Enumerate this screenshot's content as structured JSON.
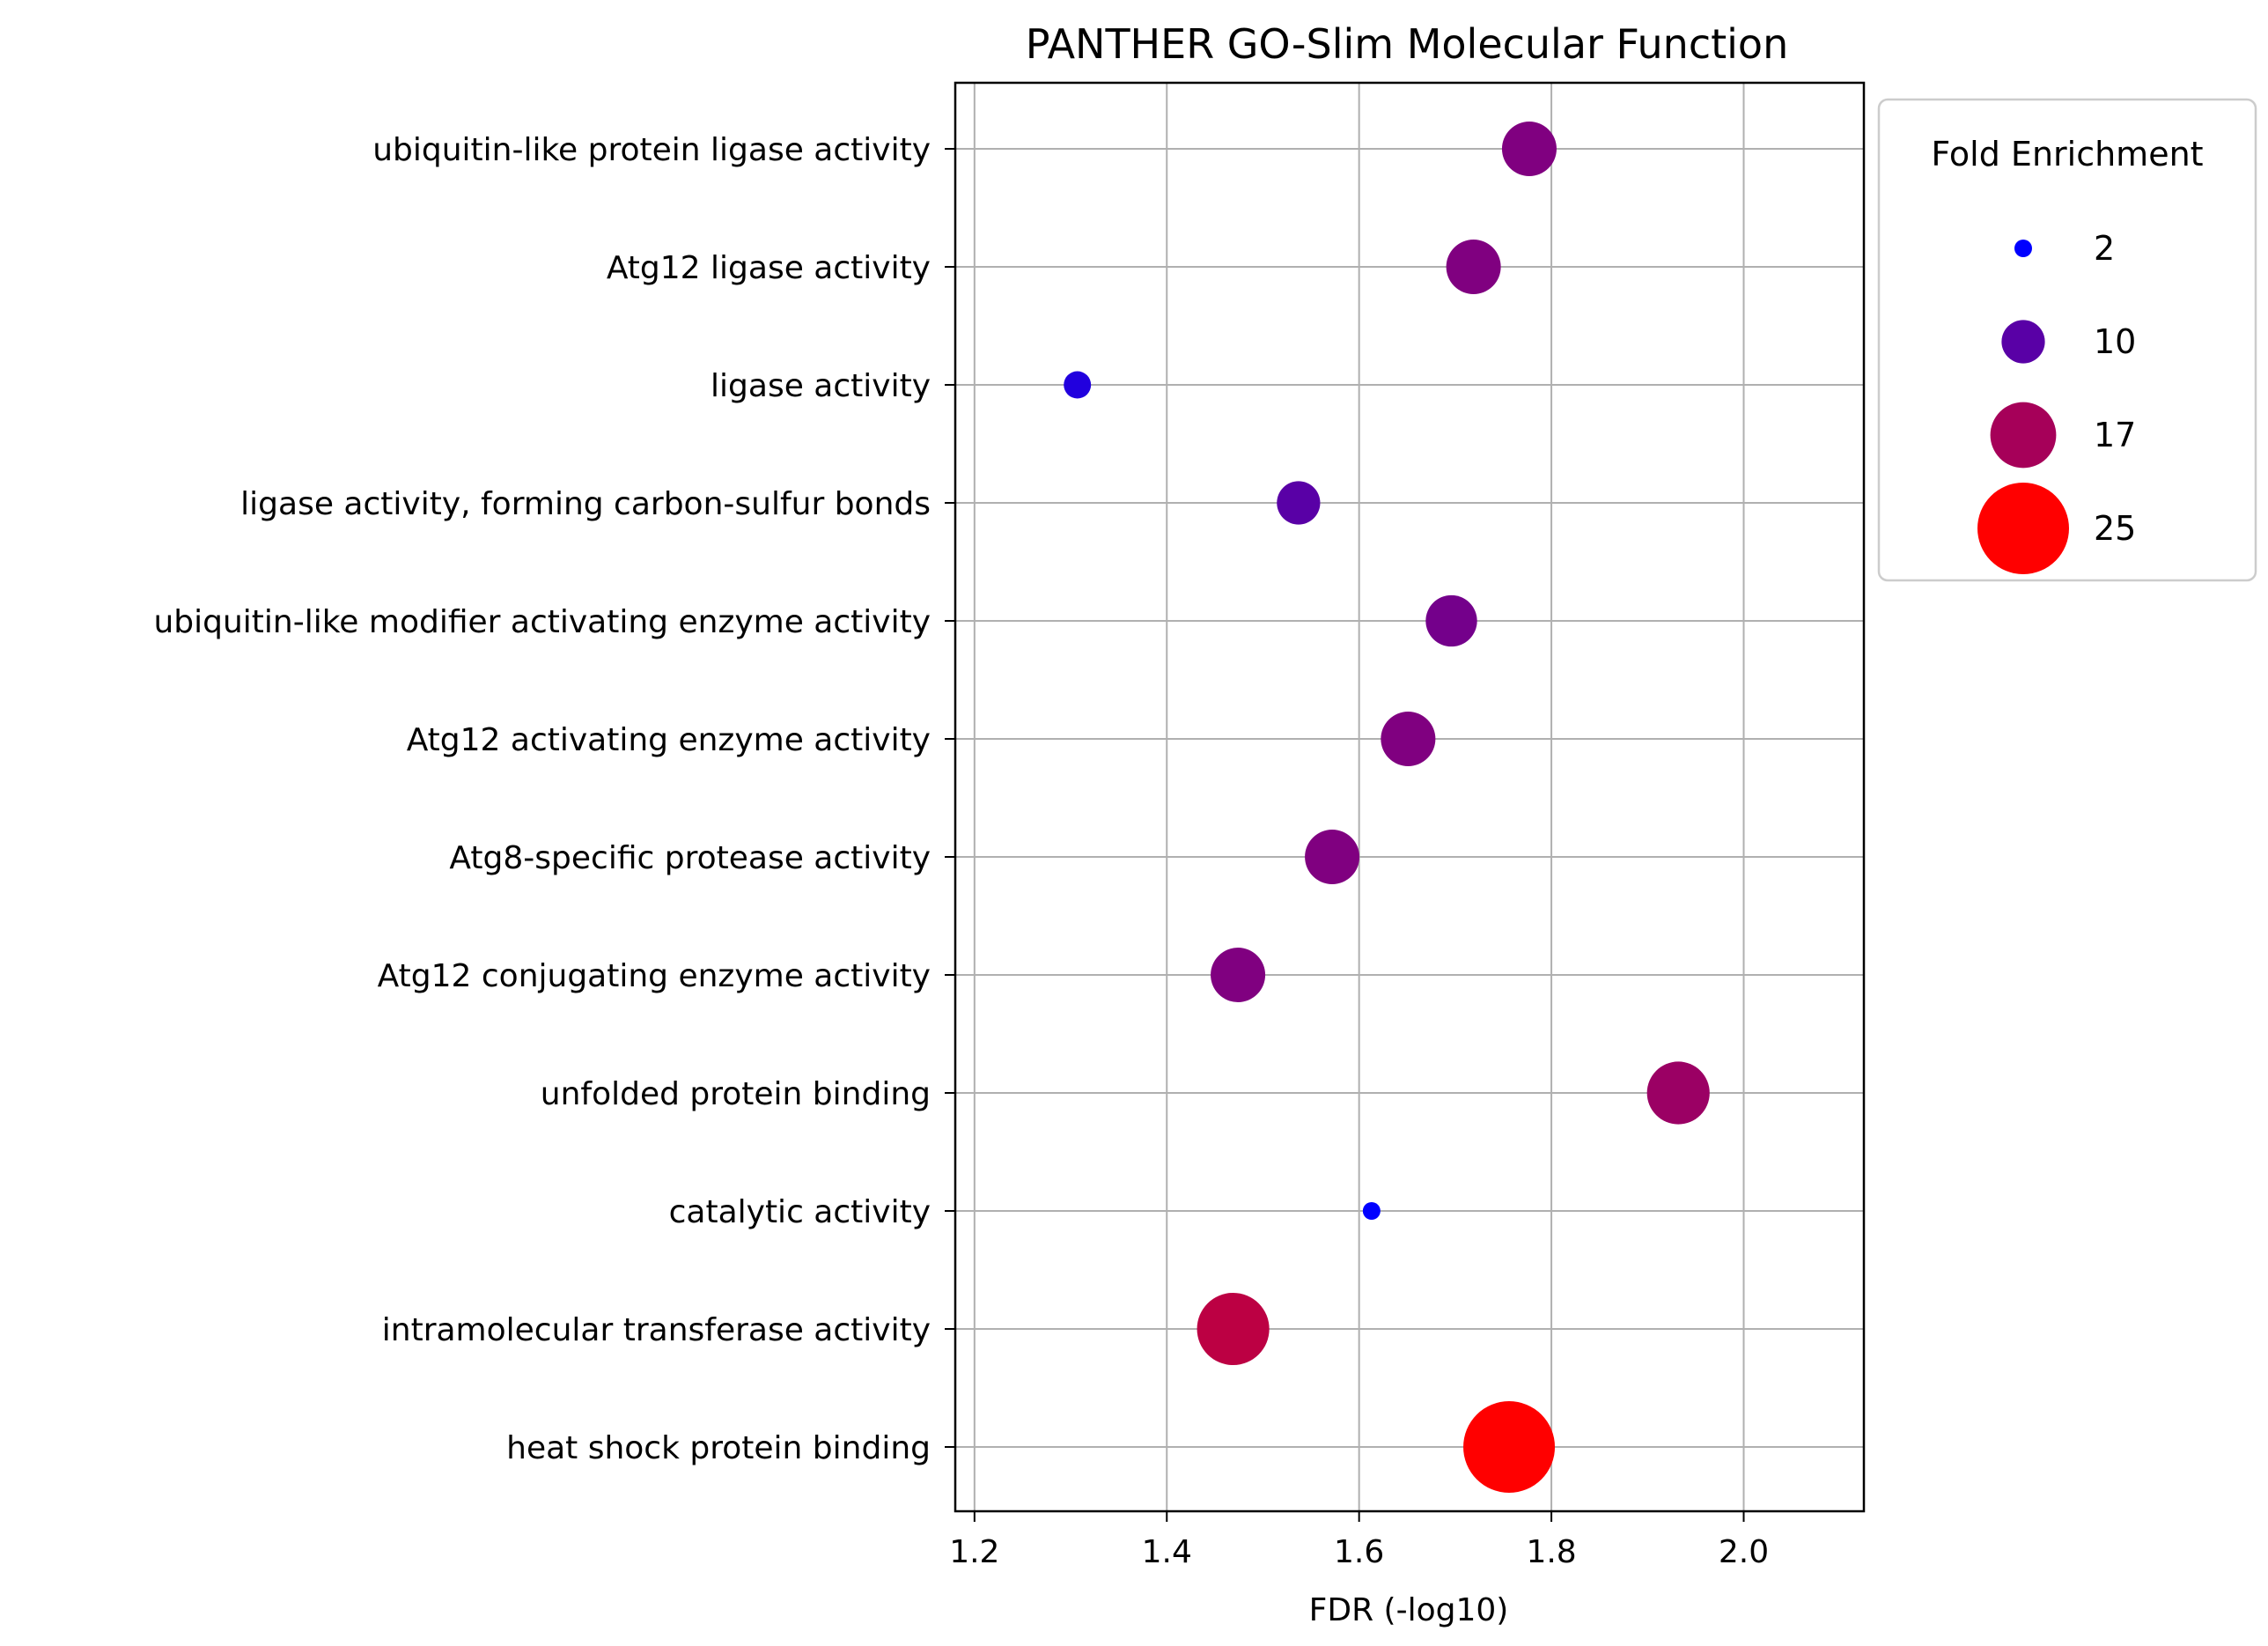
{
  "chart_data": {
    "type": "scatter",
    "title": "PANTHER GO-Slim Molecular Function",
    "xlabel": "FDR (-log10)",
    "ylabel": "",
    "xlim": [
      1.18,
      2.125
    ],
    "xticks": [
      "1.2",
      "1.4",
      "1.6",
      "1.8",
      "2.0"
    ],
    "xtick_values": [
      1.2,
      1.4,
      1.6,
      1.8,
      2.0
    ],
    "grid": true,
    "categories": [
      "ubiquitin-like protein ligase activity",
      "Atg12 ligase activity",
      "ligase activity",
      "ligase activity, forming carbon-sulfur bonds",
      "ubiquitin-like modifier activating enzyme activity",
      "Atg12 activating enzyme activity",
      "Atg8-specific protease activity",
      "Atg12 conjugating enzyme activity",
      "unfolded protein binding",
      "catalytic activity",
      "intramolecular transferase activity",
      "heat shock protein binding"
    ],
    "points": [
      {
        "category": "ubiquitin-like protein ligase activity",
        "fdr": 1.777,
        "fold_enrichment": 13.5
      },
      {
        "category": "Atg12 ligase activity",
        "fdr": 1.719,
        "fold_enrichment": 13.5
      },
      {
        "category": "ligase activity",
        "fdr": 1.307,
        "fold_enrichment": 5
      },
      {
        "category": "ligase activity, forming carbon-sulfur bonds",
        "fdr": 1.537,
        "fold_enrichment": 10
      },
      {
        "category": "ubiquitin-like modifier activating enzyme activity",
        "fdr": 1.696,
        "fold_enrichment": 12.5
      },
      {
        "category": "Atg12 activating enzyme activity",
        "fdr": 1.651,
        "fold_enrichment": 13.5
      },
      {
        "category": "Atg8-specific protease activity",
        "fdr": 1.572,
        "fold_enrichment": 13.5
      },
      {
        "category": "Atg12 conjugating enzyme activity",
        "fdr": 1.474,
        "fold_enrichment": 13.5
      },
      {
        "category": "unfolded protein binding",
        "fdr": 1.932,
        "fold_enrichment": 16
      },
      {
        "category": "catalytic activity",
        "fdr": 1.613,
        "fold_enrichment": 2
      },
      {
        "category": "intramolecular transferase activity",
        "fdr": 1.469,
        "fold_enrichment": 19
      },
      {
        "category": "heat shock protein binding",
        "fdr": 1.756,
        "fold_enrichment": 25
      }
    ],
    "size_legend": {
      "title": "Fold Enrichment",
      "placement": "outside-right-top",
      "entries": [
        {
          "label": "2",
          "value": 2
        },
        {
          "label": "10",
          "value": 10
        },
        {
          "label": "17",
          "value": 17
        },
        {
          "label": "25",
          "value": 25
        }
      ]
    },
    "color_scale": {
      "min_value": 2,
      "max_value": 25,
      "low_color": "#0000ff",
      "high_color": "#ff0000"
    }
  }
}
